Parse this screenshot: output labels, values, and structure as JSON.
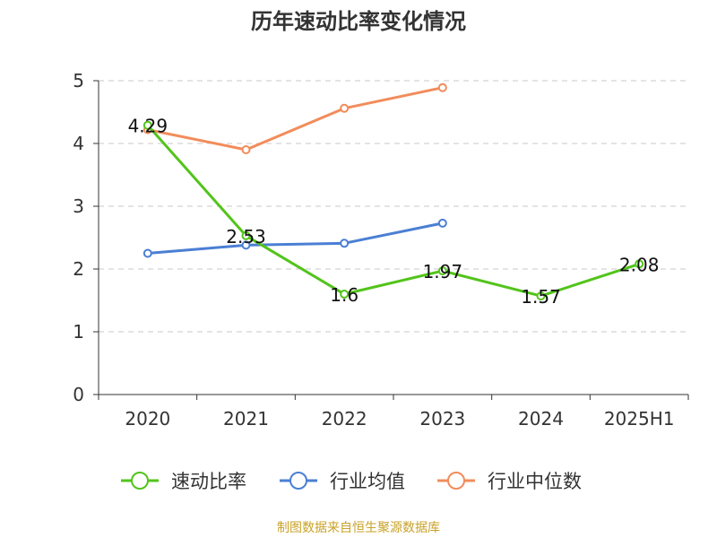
{
  "title": "历年速动比率变化情况",
  "footer": "制图数据来自恒生聚源数据库",
  "chart_data": {
    "type": "line",
    "title": "历年速动比率变化情况",
    "categories": [
      "2020",
      "2021",
      "2022",
      "2023",
      "2024",
      "2025H1"
    ],
    "ylim": [
      0,
      5
    ],
    "yticks": [
      0,
      1,
      2,
      3,
      4,
      5
    ],
    "grid": true,
    "legend_position": "bottom",
    "series": [
      {
        "name": "速动比率",
        "color": "#52c41a",
        "values": [
          4.29,
          2.53,
          1.6,
          1.97,
          1.57,
          2.08
        ],
        "labels": [
          "4.29",
          "2.53",
          "1.6",
          "1.97",
          "1.57",
          "2.08"
        ]
      },
      {
        "name": "行业均值",
        "color": "#4a7fd4",
        "values": [
          2.25,
          2.38,
          2.41,
          2.73,
          null,
          null
        ]
      },
      {
        "name": "行业中位数",
        "color": "#f28c5b",
        "values": [
          4.22,
          3.9,
          4.56,
          4.89,
          null,
          null
        ]
      }
    ]
  }
}
